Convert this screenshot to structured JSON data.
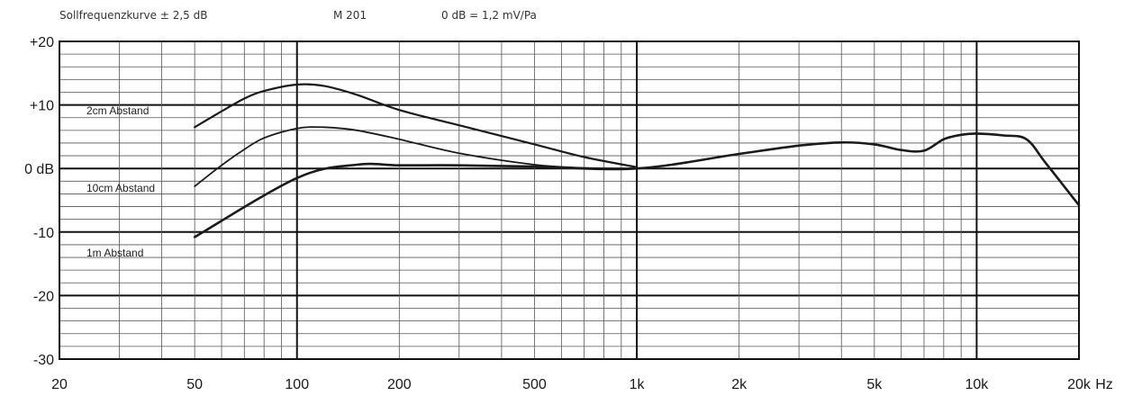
{
  "header": {
    "tolerance": "Sollfrequenzkurve ± 2,5 dB",
    "model": "M 201",
    "reference": "0 dB = 1,2 mV/Pa"
  },
  "chart_data": {
    "type": "line",
    "title": "",
    "xlabel": "",
    "ylabel": "",
    "x_scale": "log",
    "xlim": [
      20,
      20000
    ],
    "ylim": [
      -30,
      20
    ],
    "grid": true,
    "x_unit": "Hz",
    "y_ticks": [
      {
        "value": 20,
        "label": "+20"
      },
      {
        "value": 10,
        "label": "+10"
      },
      {
        "value": 0,
        "label": "0 dB"
      },
      {
        "value": -10,
        "label": "-10"
      },
      {
        "value": -20,
        "label": "-20"
      },
      {
        "value": -30,
        "label": "-30"
      }
    ],
    "x_ticks": [
      {
        "value": 20,
        "label": "20"
      },
      {
        "value": 50,
        "label": "50"
      },
      {
        "value": 100,
        "label": "100"
      },
      {
        "value": 200,
        "label": "200"
      },
      {
        "value": 500,
        "label": "500"
      },
      {
        "value": 1000,
        "label": "1k"
      },
      {
        "value": 2000,
        "label": "2k"
      },
      {
        "value": 5000,
        "label": "5k"
      },
      {
        "value": 10000,
        "label": "10k"
      },
      {
        "value": 20000,
        "label": "20k"
      }
    ],
    "series": [
      {
        "name": "2cm Abstand",
        "x": [
          50,
          60,
          70,
          80,
          100,
          120,
          150,
          200,
          300,
          500,
          700,
          1000
        ],
        "y": [
          6.5,
          9.0,
          11.0,
          12.2,
          13.2,
          13.0,
          11.6,
          9.2,
          6.8,
          3.8,
          1.8,
          0.2
        ]
      },
      {
        "name": "10cm Abstand",
        "x": [
          50,
          60,
          70,
          80,
          100,
          120,
          150,
          200,
          300,
          500,
          700,
          1000
        ],
        "y": [
          -2.8,
          0.5,
          3.0,
          4.8,
          6.3,
          6.5,
          6.0,
          4.6,
          2.4,
          0.6,
          0.1,
          0.0
        ]
      },
      {
        "name": "1m Abstand",
        "x": [
          50,
          100,
          150,
          200,
          300,
          500,
          1000,
          2000,
          3000,
          4000,
          5000,
          6000,
          7000,
          8000,
          9000,
          10000,
          12000,
          14000,
          16000,
          20000
        ],
        "y": [
          -10.8,
          -1.5,
          0.6,
          0.5,
          0.5,
          0.3,
          0.0,
          2.3,
          3.6,
          4.1,
          3.8,
          2.9,
          2.8,
          4.6,
          5.3,
          5.5,
          5.2,
          4.6,
          0.8,
          -5.8
        ]
      }
    ]
  }
}
